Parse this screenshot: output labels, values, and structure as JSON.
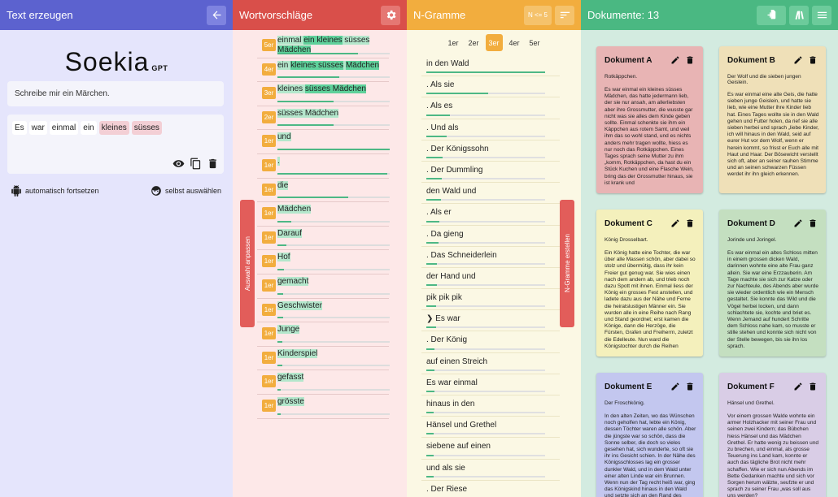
{
  "col1": {
    "title": "Text erzeugen",
    "back_icon": "arrow-left-icon",
    "logo": "Soekia",
    "logo_suffix": "GPT",
    "prompt": "Schreibe mir ein Märchen.",
    "tokens": [
      {
        "text": "Es",
        "pink": false
      },
      {
        "text": "war",
        "pink": false
      },
      {
        "text": "einmal",
        "pink": false
      },
      {
        "text": "ein",
        "pink": false
      },
      {
        "text": "kleines",
        "pink": true
      },
      {
        "text": "süsses",
        "pink": true
      }
    ],
    "auto_label": "automatisch fortsetzen",
    "manual_label": "selbst auswählen"
  },
  "col2": {
    "title": "Wortvorschläge",
    "side_label": "Auswahl anpassen",
    "words": [
      {
        "badge": "5er",
        "parts": [
          "einmal ",
          "ein kleines",
          " süsses ",
          "Mädchen"
        ],
        "value": 0.72
      },
      {
        "badge": "4er",
        "parts": [
          "ein ",
          "kleines süsses",
          " ",
          "Mädchen"
        ],
        "value": 0.55
      },
      {
        "badge": "3er",
        "parts": [
          "kleines ",
          "süsses Mädchen",
          "",
          ""
        ],
        "value": 0.5
      },
      {
        "badge": "2er",
        "parts": [
          "süsses Mädchen",
          "",
          "",
          ""
        ],
        "value": 0.5
      },
      {
        "badge": "1er",
        "parts": [
          "und",
          "",
          "",
          ""
        ],
        "value": 1.0
      },
      {
        "badge": "1er",
        "parts": [
          ".",
          "",
          "",
          ""
        ],
        "value": 0.98
      },
      {
        "badge": "1er",
        "parts": [
          "die",
          "",
          "",
          ""
        ],
        "value": 0.63
      },
      {
        "badge": "1er",
        "parts": [
          "Mädchen",
          "",
          "",
          ""
        ],
        "value": 0.12
      },
      {
        "badge": "1er",
        "parts": [
          "Darauf",
          "",
          "",
          ""
        ],
        "value": 0.08
      },
      {
        "badge": "1er",
        "parts": [
          "Hof",
          "",
          "",
          ""
        ],
        "value": 0.06
      },
      {
        "badge": "1er",
        "parts": [
          "gemacht",
          "",
          "",
          ""
        ],
        "value": 0.05
      },
      {
        "badge": "1er",
        "parts": [
          "Geschwister",
          "",
          "",
          ""
        ],
        "value": 0.05
      },
      {
        "badge": "1er",
        "parts": [
          "Junge",
          "",
          "",
          ""
        ],
        "value": 0.04
      },
      {
        "badge": "1er",
        "parts": [
          "Kinderspiel",
          "",
          "",
          ""
        ],
        "value": 0.04
      },
      {
        "badge": "1er",
        "parts": [
          "gefasst",
          "",
          "",
          ""
        ],
        "value": 0.03
      },
      {
        "badge": "1er",
        "parts": [
          "grösste",
          "",
          "",
          ""
        ],
        "value": 0.03
      }
    ]
  },
  "col3": {
    "title": "N-Gramme",
    "filter_label": "N <= 5",
    "side_label": "N-Gramme erstellen",
    "tabs": [
      "1er",
      "2er",
      "3er",
      "4er",
      "5er"
    ],
    "active_tab": 2,
    "ngrams": [
      {
        "text": "in den Wald",
        "value": 1.0
      },
      {
        "text": ". Als sie",
        "value": 0.52
      },
      {
        "text": ". Als es",
        "value": 0.2
      },
      {
        "text": ". Und als",
        "value": 0.17
      },
      {
        "text": ". Der Königssohn",
        "value": 0.14
      },
      {
        "text": ". Der Dummling",
        "value": 0.13
      },
      {
        "text": "den Wald und",
        "value": 0.12
      },
      {
        "text": ". Als er",
        "value": 0.11
      },
      {
        "text": ". Da gieng",
        "value": 0.1
      },
      {
        "text": ". Das Schneiderlein",
        "value": 0.09
      },
      {
        "text": "der Hand und",
        "value": 0.09
      },
      {
        "text": "pik pik pik",
        "value": 0.08
      },
      {
        "text": "❯ Es war",
        "value": 0.08
      },
      {
        "text": ". Der König",
        "value": 0.07
      },
      {
        "text": "auf einen Streich",
        "value": 0.07
      },
      {
        "text": "Es war einmal",
        "value": 0.07
      },
      {
        "text": "hinaus in den",
        "value": 0.06
      },
      {
        "text": "Hänsel und Grethel",
        "value": 0.06
      },
      {
        "text": "siebene auf einen",
        "value": 0.06
      },
      {
        "text": "und als sie",
        "value": 0.06
      },
      {
        "text": ". Der Riese",
        "value": 0.05
      }
    ]
  },
  "col4": {
    "title": "Dokumente: 13",
    "docs": [
      {
        "title": "Dokument A",
        "color": "#e8b4b4",
        "subtitle": "Rotkäppchen.",
        "text": "Es war einmal ein kleines süsses Mädchen, das hatte jedermann lieb, der sie nur ansah, am allerliebsten aber ihre Grossmutter, die wusste gar nicht was sie alles dem Kinde geben sollte. Einmal schenkte sie ihm ein Käppchen aus rotem Samt, und weil ihm das so wohl stand, und es nichts anders mehr tragen wollte, hiess es nur noch das Rotkäppchen. Eines Tages sprach seine Mutter zu ihm „komm, Rotkäppchen, da hast du ein Stück Kuchen und eine Flasche Wein, bring das der Grossmutter hinaus, sie ist krank und"
      },
      {
        "title": "Dokument B",
        "color": "#efe0b8",
        "subtitle": "Der Wolf und die sieben jungen Geislein.",
        "text": "Es war einmal eine alte Geis, die hatte sieben junge Geislein, und hatte sie lieb, wie eine Mutter ihre Kinder lieb hat. Eines Tages wollte sie in den Wald gehen und Futter holen, da rief sie alle sieben herbei und sprach „liebe Kinder, ich will hinaus in den Wald, seid auf eurer Hut vor dem Wolf, wenn er herein kommt, so frisst er Euch alle mit Haut und Haar. Der Bösewicht verstellt sich oft, aber an seiner rauhen Stimme und an seinen schwarzen Füssen werdet ihr ihn gleich erkennen."
      },
      {
        "title": "Dokument C",
        "color": "#f4f0bc",
        "subtitle": "König Drosselbart.",
        "text": "Ein König hatte eine Tochter, die war über alle Massen schön, aber dabei so stolz und übermütig, dass ihr kein Freier gut genug war. Sie wies einen nach dem andern ab, und trieb noch dazu Spott mit ihnen. Einmal liess der König ein grosses Fest anstellen, und ladete dazu aus der Nähe und Ferne die heiratslustigen Männer ein. Sie wurden alle in eine Reihe nach Rang und Stand geordnet; erst kamen die Könige, dann die Herzöge, die Fürsten, Grafen und Freiherrn, zuletzt die Edelleute. Nun ward die Königstochter durch die Reihen geführt."
      },
      {
        "title": "Dokument D",
        "color": "#c4dfc0",
        "subtitle": "Jorinde und Joringel.",
        "text": "Es war einmal ein altes Schloss mitten in einem grossen dicken Wald, darinnen wohnte eine alte Frau ganz allein. Sie war eine Erzzauberin. Am Tage machte sie sich zur Katze oder zur Nachteule, des Abends aber wurde sie wieder ordentlich wie ein Mensch gestaltet. Sie konnte das Wild und die Vögel herbei locken, und dann schlachtete sie, kochte und briet es. Wenn Jemand auf hundert Schritte dem Schloss nahe kam, so musste er stille stehen und konnte sich nicht von der Stelle bewegen, bis sie ihn los sprach."
      },
      {
        "title": "Dokument E",
        "color": "#c3c7ef",
        "subtitle": "Der Froschkönig.",
        "text": "In den alten Zeiten, wo das Wünschen noch geholfen hat, lebte ein König, dessen Töchter waren alle schön. Aber die jüngste war so schön, dass die Sonne selber, die doch so vieles gesehen hat, sich wunderte, so oft sie ihr ins Gesicht schien. In der Nähe des Königsschlosses lag ein grosser dunkler Wald, und in dem Wald unter einer alten Linde war ein Brunnen. Wenn nun der Tag recht heiß war, ging das Königskind hinaus in den Wald und setzte sich an den Rand des kühlen Brunnens."
      },
      {
        "title": "Dokument F",
        "color": "#d9cde6",
        "subtitle": "Hänsel und Grethel.",
        "text": "Vor einem grossen Walde wohnte ein armer Holzhacker mit seiner Frau und seinen zwei Kindern; das Bübchen hiess Hänsel und das Mädchen Grethel. Er hatte wenig zu beissen und zu brechen, und einmal, als grosse Teuerung ins Land kam, konnte er auch das tägliche Brot nicht mehr schaffen. Wie er sich nun Abends im Bette Gedanken machte und sich vor Sorgen herum wälzte, seufzte er und sprach zu seiner Frau „was soll aus uns werden?"
      }
    ]
  }
}
